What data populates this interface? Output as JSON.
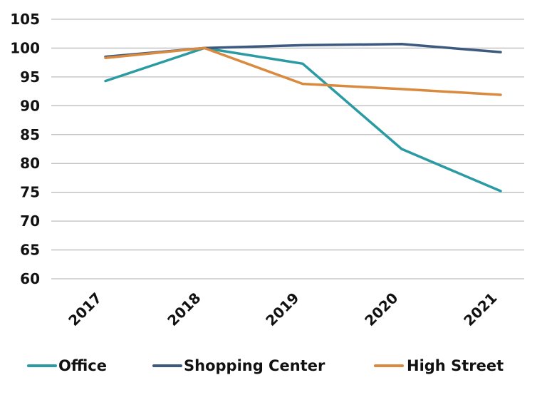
{
  "chart_data": {
    "type": "line",
    "title": "",
    "xlabel": "",
    "ylabel": "",
    "categories": [
      "2017",
      "2018",
      "2019",
      "2020",
      "2021"
    ],
    "ylim": [
      60,
      105
    ],
    "yticks": [
      60,
      65,
      70,
      75,
      80,
      85,
      90,
      95,
      100,
      105
    ],
    "grid": true,
    "legend_position": "bottom",
    "series": [
      {
        "name": "Office",
        "color": "#2a9aa3",
        "values": [
          94.3,
          100.0,
          97.3,
          82.5,
          75.2
        ]
      },
      {
        "name": "Shopping Center",
        "color": "#3c5a80",
        "values": [
          98.5,
          100.0,
          100.5,
          100.7,
          99.3
        ]
      },
      {
        "name": "High Street",
        "color": "#d98a3f",
        "values": [
          98.3,
          100.0,
          93.8,
          92.9,
          91.9
        ]
      }
    ]
  }
}
